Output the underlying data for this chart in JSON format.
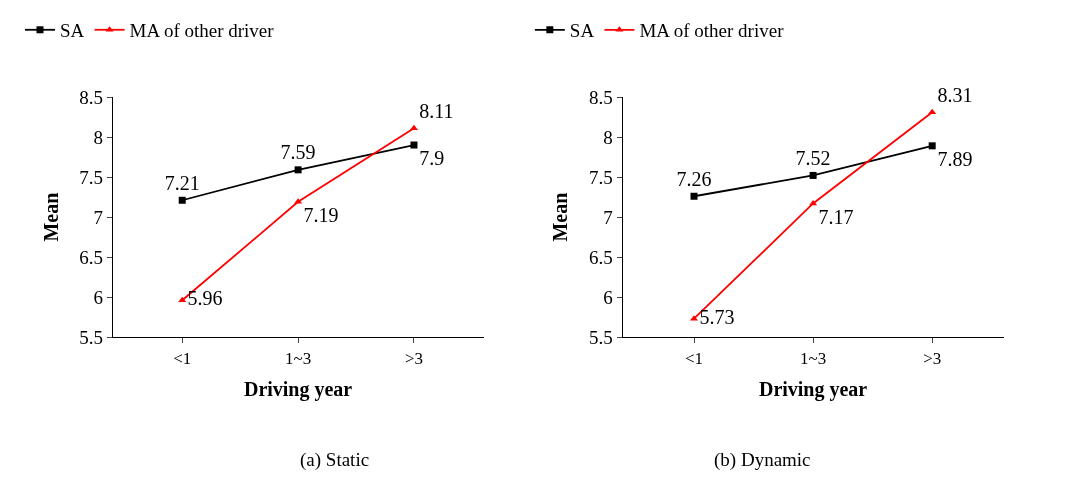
{
  "chart_data": [
    {
      "type": "line",
      "categories": [
        "<1",
        "1~3",
        ">3"
      ],
      "xlabel": "Driving year",
      "ylabel": "Mean",
      "ylim": [
        5.5,
        8.5
      ],
      "yticks": [
        5.5,
        6,
        6.5,
        7,
        7.5,
        8,
        8.5
      ],
      "legend": "top",
      "data_labels": true,
      "annotations": [
        "(a) Static"
      ],
      "series": [
        {
          "name": "SA",
          "color": "#000000",
          "marker": "square",
          "values": [
            7.21,
            7.59,
            7.9
          ]
        },
        {
          "name": "MA of other driver",
          "color": "#ff0000",
          "marker": "triangle",
          "values": [
            5.96,
            7.19,
            8.11
          ]
        }
      ]
    },
    {
      "type": "line",
      "categories": [
        "<1",
        "1~3",
        ">3"
      ],
      "xlabel": "Driving year",
      "ylabel": "Mean",
      "ylim": [
        5.5,
        8.5
      ],
      "yticks": [
        5.5,
        6,
        6.5,
        7,
        7.5,
        8,
        8.5
      ],
      "legend": "top",
      "data_labels": true,
      "annotations": [
        "(b) Dynamic"
      ],
      "series": [
        {
          "name": "SA",
          "color": "#000000",
          "marker": "square",
          "values": [
            7.26,
            7.52,
            7.89
          ]
        },
        {
          "name": "MA of other driver",
          "color": "#ff0000",
          "marker": "triangle",
          "values": [
            5.73,
            7.17,
            8.31
          ]
        }
      ]
    }
  ]
}
